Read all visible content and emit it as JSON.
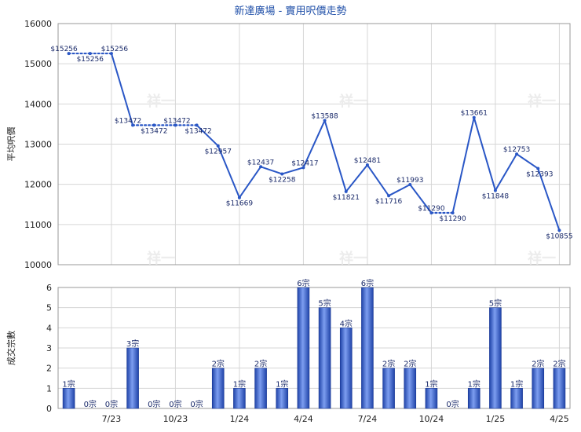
{
  "chart_data": [
    {
      "type": "line",
      "title": "新達廣場 - 實用呎價走勢",
      "ylabel": "平均呎價",
      "ylim": [
        10000,
        16000
      ],
      "yticks": [
        10000,
        11000,
        12000,
        13000,
        14000,
        15000,
        16000
      ],
      "grid": true,
      "series": [
        {
          "color": "#2a57c6",
          "points": [
            {
              "slot": 0,
              "value": 15256,
              "label": "$15256"
            },
            {
              "slot": 1,
              "value": 15256,
              "label": "$15256"
            },
            {
              "slot": 2,
              "value": 15256,
              "label": "$15256"
            },
            {
              "slot": 3,
              "value": 13472,
              "label": "$13472"
            },
            {
              "slot": 4,
              "value": 13472,
              "label": "$13472"
            },
            {
              "slot": 5,
              "value": 13472,
              "label": "$13472"
            },
            {
              "slot": 6,
              "value": 13472,
              "label": "$13472"
            },
            {
              "slot": 7,
              "value": 12957,
              "label": "$12957"
            },
            {
              "slot": 8,
              "value": 11669,
              "label": "$11669"
            },
            {
              "slot": 9,
              "value": 12437,
              "label": "$12437"
            },
            {
              "slot": 10,
              "value": 12258,
              "label": "$12258"
            },
            {
              "slot": 11,
              "value": 12417,
              "label": "$12417"
            },
            {
              "slot": 12,
              "value": 13588,
              "label": "$13588"
            },
            {
              "slot": 13,
              "value": 11821,
              "label": "$11821"
            },
            {
              "slot": 14,
              "value": 12481,
              "label": "$12481"
            },
            {
              "slot": 15,
              "value": 11716,
              "label": "$11716"
            },
            {
              "slot": 16,
              "value": 11993,
              "label": "$11993"
            },
            {
              "slot": 17,
              "value": 11290,
              "label": "$11290"
            },
            {
              "slot": 18,
              "value": 11290,
              "label": "$11290"
            },
            {
              "slot": 19,
              "value": 13661,
              "label": "$13661"
            },
            {
              "slot": 20,
              "value": 11848,
              "label": "$11848"
            },
            {
              "slot": 21,
              "value": 12753,
              "label": "$12753"
            },
            {
              "slot": 22,
              "value": 12393,
              "label": "$12393"
            },
            {
              "slot": 23,
              "value": 10855,
              "label": "$10855"
            }
          ]
        }
      ]
    },
    {
      "type": "bar",
      "ylabel": "成交宗數",
      "ylim": [
        0,
        6
      ],
      "yticks": [
        0,
        1,
        2,
        3,
        4,
        5,
        6
      ],
      "grid": true,
      "values": [
        1,
        0,
        0,
        3,
        0,
        0,
        0,
        2,
        1,
        2,
        1,
        6,
        5,
        4,
        6,
        2,
        2,
        1,
        0,
        1,
        5,
        1,
        2,
        2
      ],
      "labels": [
        "1宗",
        "0宗",
        "0宗",
        "3宗",
        "0宗",
        "0宗",
        "0宗",
        "2宗",
        "1宗",
        "2宗",
        "1宗",
        "6宗",
        "5宗",
        "4宗",
        "6宗",
        "2宗",
        "2宗",
        "1宗",
        "0宗",
        "1宗",
        "5宗",
        "1宗",
        "2宗",
        "2宗"
      ],
      "x_tick_labels": [
        {
          "slot": 2,
          "label": "7/23"
        },
        {
          "slot": 5,
          "label": "10/23"
        },
        {
          "slot": 8,
          "label": "1/24"
        },
        {
          "slot": 11,
          "label": "4/24"
        },
        {
          "slot": 14,
          "label": "7/24"
        },
        {
          "slot": 17,
          "label": "10/24"
        },
        {
          "slot": 20,
          "label": "1/25"
        },
        {
          "slot": 23,
          "label": "4/25"
        }
      ]
    }
  ]
}
